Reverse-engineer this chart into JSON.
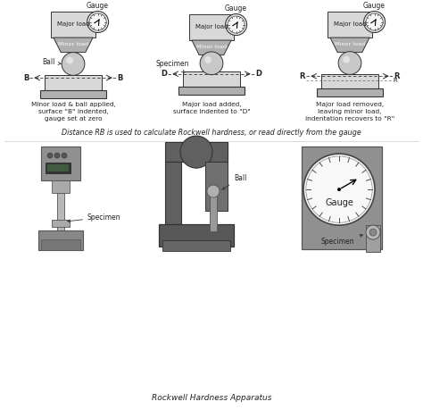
{
  "bg_color": "#ffffff",
  "fig_width": 4.74,
  "fig_height": 4.59,
  "dpi": 100,
  "top_caption": "Distance RB is used to calculate Rockwell hardness, or read directly from the gauge",
  "bottom_caption": "Rockwell Hardness Apparatus",
  "diagram1": {
    "title_lines": [
      "Minor load & ball applied,",
      "surface \"B\" indented,",
      "gauge set at zero"
    ],
    "label_ball": "Ball",
    "label_ref": "B",
    "gauge_label": "Gauge"
  },
  "diagram2": {
    "title_lines": [
      "Major load added,",
      "surface indented to \"D\""
    ],
    "label_specimen": "Specimen",
    "label_ref": "D",
    "gauge_label": "Gauge"
  },
  "diagram3": {
    "title_lines": [
      "Major load removed,",
      "leaving minor load,",
      "indentation recovers to \"R\""
    ],
    "label_ref": "R",
    "gauge_label": "Gauge"
  },
  "apparatus_labels": {
    "left": "Specimen",
    "center": "Ball",
    "right_gauge": "Gauge",
    "right_specimen": "Specimen"
  },
  "gray_light": "#d8d8d8",
  "gray_mid": "#b0b0b0",
  "gray_dark": "#707070",
  "gray_box": "#c8c8c8",
  "line_color": "#333333",
  "text_color": "#222222"
}
